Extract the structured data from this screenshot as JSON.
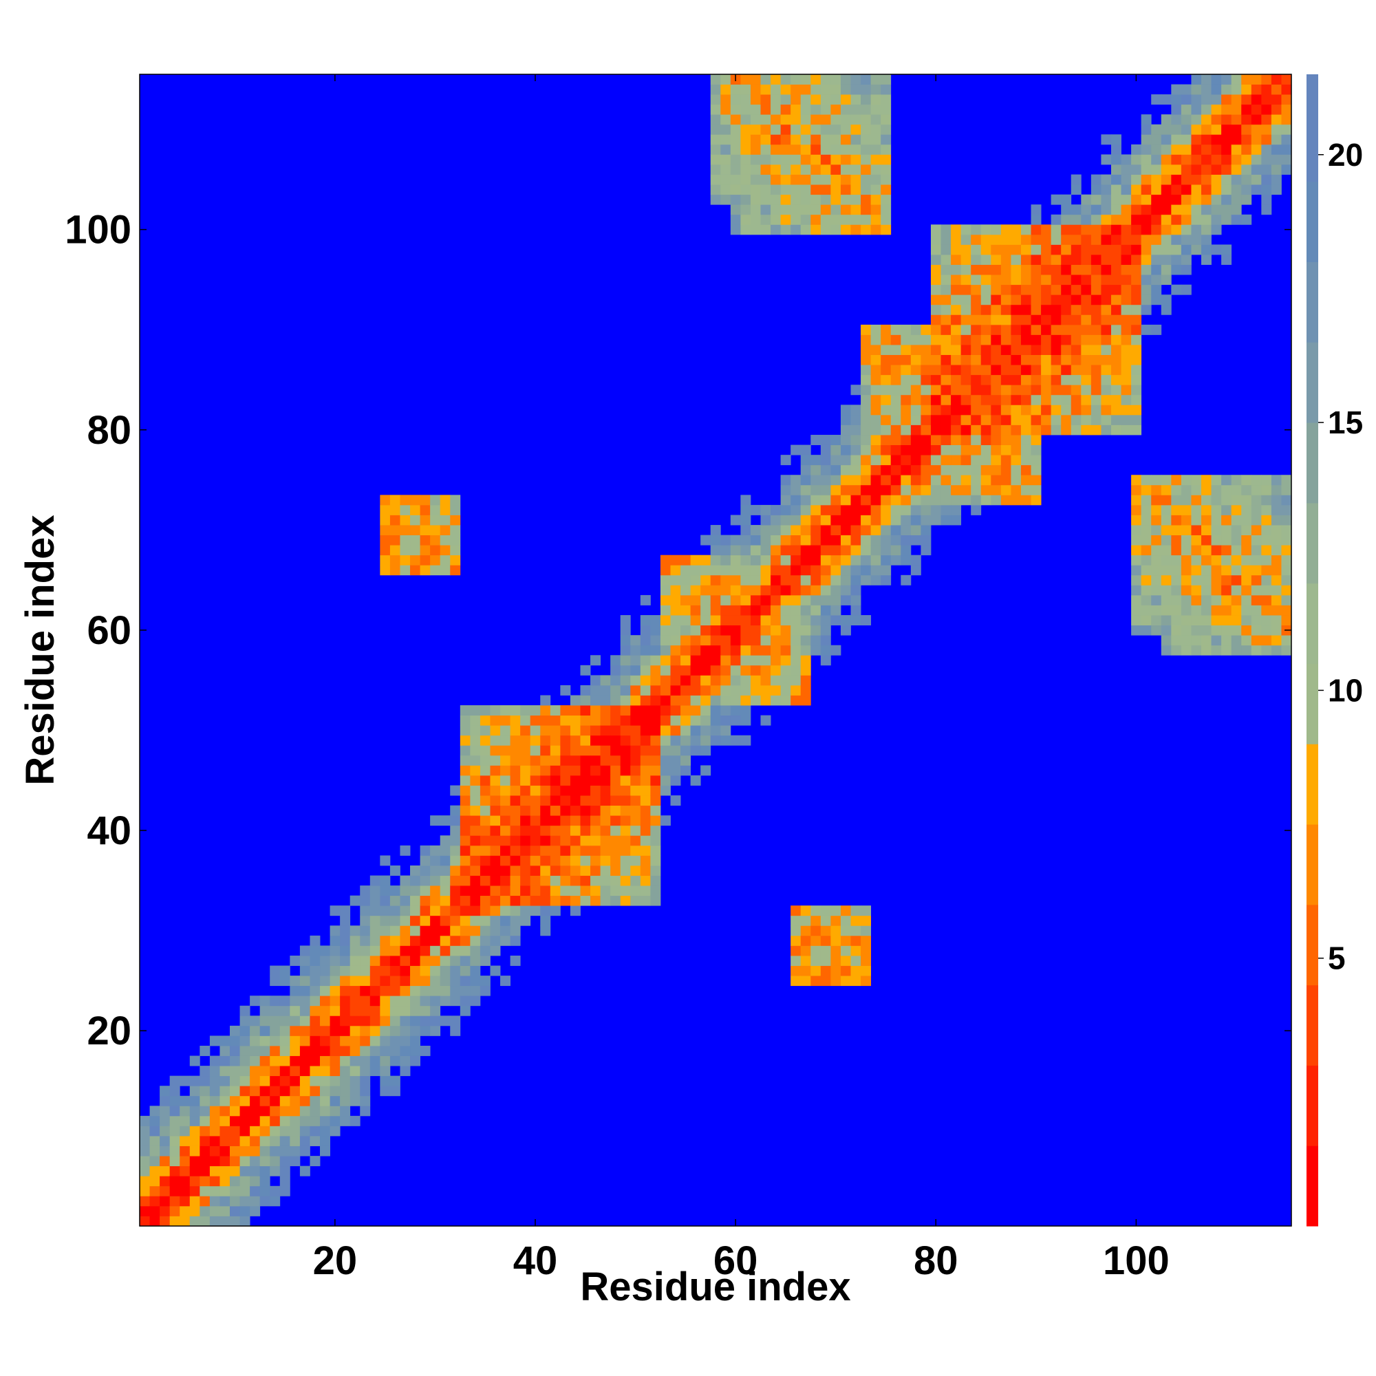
{
  "chart_data": {
    "type": "heatmap",
    "description_kind": "residue contact / distance map",
    "xlabel": "Residue index",
    "ylabel": "Residue index",
    "n_residues": 115,
    "xlim": [
      0.5,
      115.5
    ],
    "ylim": [
      0.5,
      115.5
    ],
    "x_ticks": [
      20,
      40,
      60,
      80,
      100
    ],
    "y_ticks": [
      20,
      40,
      60,
      80,
      100
    ],
    "colorbar": {
      "ticks": [
        5,
        10,
        15,
        20
      ],
      "range": [
        0,
        21.5
      ],
      "levels": [
        {
          "max": 1.5,
          "color": "#ff0000"
        },
        {
          "max": 3.0,
          "color": "#ff2200"
        },
        {
          "max": 4.5,
          "color": "#ff4400"
        },
        {
          "max": 6.0,
          "color": "#ff6600"
        },
        {
          "max": 7.5,
          "color": "#ff8800"
        },
        {
          "max": 9.0,
          "color": "#ffaa00"
        },
        {
          "max": 10.5,
          "color": "#a0b98b"
        },
        {
          "max": 12.0,
          "color": "#9db88f"
        },
        {
          "max": 13.5,
          "color": "#92ae95"
        },
        {
          "max": 15.0,
          "color": "#85a39c"
        },
        {
          "max": 16.5,
          "color": "#7a9aaa"
        },
        {
          "max": 18.0,
          "color": "#6f92b2"
        },
        {
          "max": 19.5,
          "color": "#638ab8"
        },
        {
          "max": 21.5,
          "color": "#6485bd"
        },
        {
          "max": 999,
          "color": "#0000ff"
        }
      ]
    },
    "cutoff": 21,
    "structure_features": {
      "main_diagonal": "self contacts along i = j (red)",
      "helix_bands": [
        [
          33,
          52
        ],
        [
          80,
          100
        ]
      ],
      "antiparallel_contacts": [
        {
          "i_range": [
            53,
            63
          ],
          "j_range": [
            57,
            67
          ]
        },
        {
          "i_range": [
            60,
            75
          ],
          "j_range": [
            100,
            115
          ]
        },
        {
          "i_range": [
            79,
            90
          ],
          "j_range": [
            73,
            85
          ]
        },
        {
          "i_range": [
            25,
            32
          ],
          "j_range": [
            66,
            73
          ]
        },
        {
          "i_range": [
            66,
            71
          ],
          "j_range": [
            25,
            31
          ]
        },
        {
          "i_range": [
            103,
            115
          ],
          "j_range": [
            58,
            74
          ]
        }
      ]
    }
  }
}
